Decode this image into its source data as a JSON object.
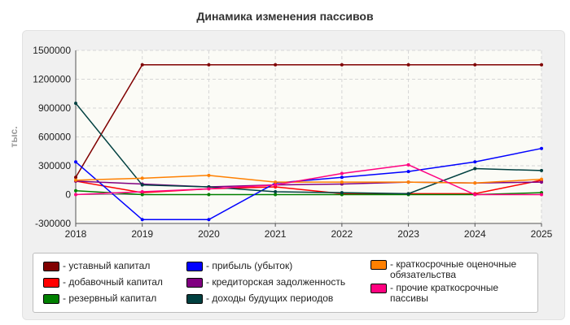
{
  "title": "Динамика изменения пассивов",
  "chart_data": {
    "type": "line",
    "title": "Динамика изменения пассивов",
    "xlabel": "",
    "ylabel": "тыс.",
    "categories": [
      "2018",
      "2019",
      "2020",
      "2021",
      "2022",
      "2023",
      "2024",
      "2025"
    ],
    "yticks": [
      "1500000",
      "1200000",
      "900000",
      "600000",
      "300000",
      "0",
      "-300000"
    ],
    "ylim": [
      -300000,
      1500000
    ],
    "grid": true,
    "legend_position": "bottom",
    "series": [
      {
        "name": "уставный капитал",
        "color": "#800000",
        "values": [
          180000,
          1350000,
          1350000,
          1350000,
          1350000,
          1350000,
          1350000,
          1350000
        ]
      },
      {
        "name": "добавочный капитал",
        "color": "#ff0000",
        "values": [
          140000,
          20000,
          60000,
          80000,
          10000,
          10000,
          10000,
          150000
        ]
      },
      {
        "name": "резервный капитал",
        "color": "#008000",
        "values": [
          40000,
          0,
          0,
          0,
          0,
          0,
          0,
          20000
        ]
      },
      {
        "name": "прибыль (убыток)",
        "color": "#0000ff",
        "values": [
          340000,
          -260000,
          -260000,
          120000,
          180000,
          240000,
          340000,
          480000
        ]
      },
      {
        "name": "кредиторская задолженность",
        "color": "#800080",
        "values": [
          140000,
          110000,
          80000,
          100000,
          110000,
          130000,
          120000,
          130000
        ]
      },
      {
        "name": "доходы будущих периодов",
        "color": "#004040",
        "values": [
          950000,
          100000,
          80000,
          30000,
          20000,
          10000,
          270000,
          250000
        ]
      },
      {
        "name": "краткосрочные оценочные обязательства",
        "color": "#ff8000",
        "values": [
          150000,
          170000,
          200000,
          130000,
          130000,
          130000,
          120000,
          160000
        ]
      },
      {
        "name": "прочие краткосрочные пассивы",
        "color": "#ff0080",
        "values": [
          0,
          30000,
          60000,
          100000,
          220000,
          310000,
          0,
          0
        ]
      }
    ]
  }
}
